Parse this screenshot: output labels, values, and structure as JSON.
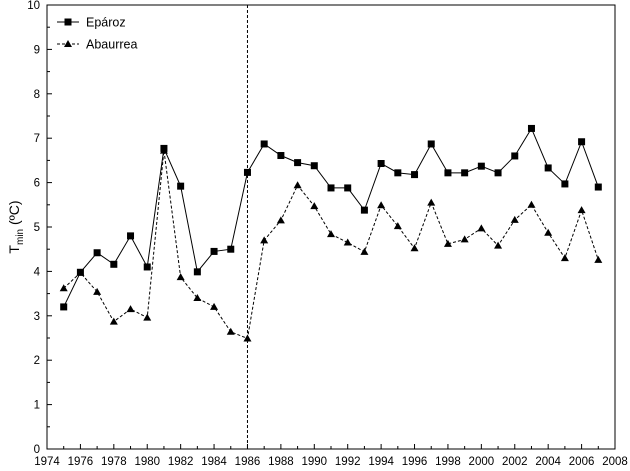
{
  "chart_data": {
    "type": "line",
    "xlabel": "",
    "ylabel": "T",
    "ylabel_sub": "min",
    "ylabel_unit": " (ºC)",
    "xlim": [
      1974,
      2008
    ],
    "ylim": [
      0,
      10
    ],
    "x_ticks": [
      1974,
      1976,
      1978,
      1980,
      1982,
      1984,
      1986,
      1988,
      1990,
      1992,
      1994,
      1996,
      1998,
      2000,
      2002,
      2004,
      2006,
      2008
    ],
    "y_ticks": [
      0,
      1,
      2,
      3,
      4,
      5,
      6,
      7,
      8,
      9,
      10
    ],
    "grid": false,
    "legend_position": "top-left",
    "reference_line": {
      "x": 1986,
      "style": "dashed"
    },
    "x": [
      1975,
      1976,
      1977,
      1978,
      1979,
      1980,
      1981,
      1982,
      1983,
      1984,
      1985,
      1986,
      1987,
      1988,
      1989,
      1990,
      1991,
      1992,
      1993,
      1994,
      1995,
      1996,
      1997,
      1998,
      1999,
      2000,
      2001,
      2002,
      2003,
      2004,
      2005,
      2006,
      2007
    ],
    "series": [
      {
        "name": "Epároz",
        "marker": "square",
        "line": "solid",
        "color": "#000000",
        "values": [
          3.2,
          3.98,
          4.42,
          4.16,
          4.8,
          4.1,
          6.77,
          5.92,
          3.99,
          4.45,
          4.5,
          6.23,
          6.87,
          6.61,
          6.45,
          6.38,
          5.88,
          5.88,
          5.38,
          6.43,
          6.22,
          6.18,
          6.87,
          6.22,
          6.22,
          6.37,
          6.22,
          6.6,
          7.22,
          6.33,
          5.97,
          6.92,
          5.9
        ]
      },
      {
        "name": "Abaurrea",
        "marker": "triangle",
        "line": "dashed",
        "color": "#000000",
        "values": [
          3.62,
          3.97,
          3.54,
          2.87,
          3.15,
          2.96,
          6.72,
          3.87,
          3.4,
          3.2,
          2.64,
          2.49,
          4.7,
          5.15,
          5.94,
          5.47,
          4.84,
          4.65,
          4.44,
          5.49,
          5.02,
          4.52,
          5.55,
          4.62,
          4.72,
          4.97,
          4.58,
          5.16,
          5.5,
          4.87,
          4.3,
          5.38,
          4.26
        ]
      }
    ]
  }
}
